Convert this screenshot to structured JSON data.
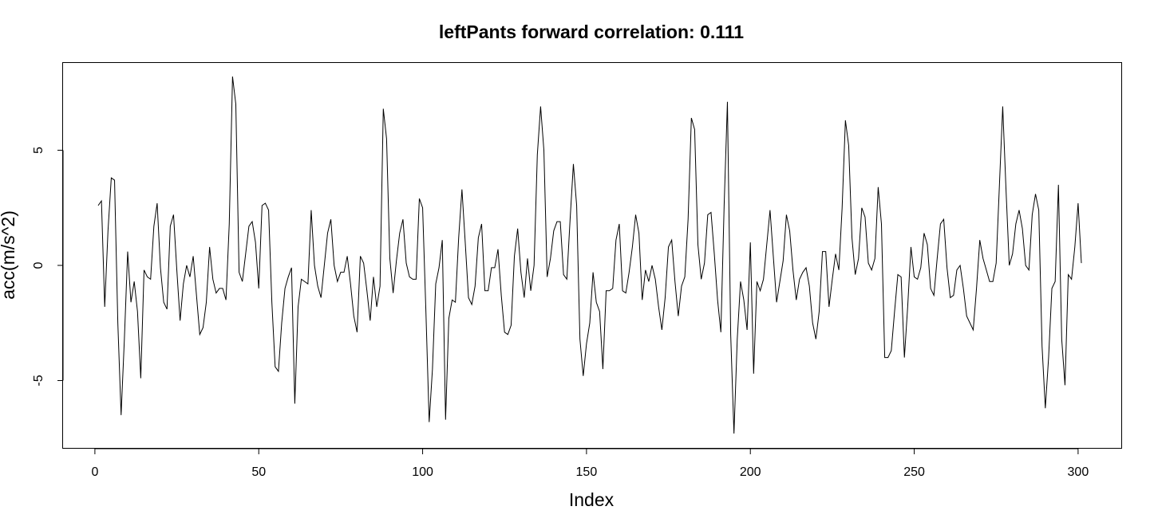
{
  "chart_data": {
    "type": "line",
    "title": "leftPants forward correlation: 0.111",
    "xlabel": "Index",
    "ylabel": "acc(m/s^2)",
    "xlim": [
      1,
      301
    ],
    "ylim": [
      -7.3,
      8.2
    ],
    "grid": false,
    "legend": "none",
    "x_ticks": [
      0,
      50,
      100,
      150,
      200,
      250,
      300
    ],
    "y_ticks": [
      -5,
      0,
      5
    ],
    "series": [
      {
        "x_start": 1,
        "values": [
          2.6,
          2.8,
          -1.8,
          1.5,
          3.8,
          3.7,
          -2.5,
          -6.5,
          -3.2,
          0.6,
          -1.6,
          -0.7,
          -2.0,
          -4.9,
          -0.2,
          -0.5,
          -0.6,
          1.7,
          2.7,
          -0.1,
          -1.6,
          -1.9,
          1.7,
          2.2,
          -0.2,
          -2.4,
          -0.8,
          0.0,
          -0.5,
          0.4,
          -1.3,
          -3.0,
          -2.7,
          -1.6,
          0.8,
          -0.6,
          -1.2,
          -1.0,
          -1.0,
          -1.5,
          1.8,
          8.2,
          7.0,
          -0.3,
          -0.7,
          0.5,
          1.7,
          1.9,
          1.0,
          -1.0,
          2.6,
          2.7,
          2.4,
          -1.6,
          -4.4,
          -4.6,
          -2.5,
          -1.0,
          -0.5,
          -0.1,
          -6.0,
          -1.8,
          -0.6,
          -0.7,
          -0.8,
          2.4,
          0.0,
          -0.9,
          -1.4,
          0.0,
          1.4,
          2.0,
          0.0,
          -0.7,
          -0.3,
          -0.3,
          0.4,
          -0.8,
          -2.2,
          -2.9,
          0.4,
          0.1,
          -1.1,
          -2.4,
          -0.5,
          -1.8,
          -0.9,
          6.8,
          5.5,
          0.3,
          -1.2,
          0.2,
          1.4,
          2.0,
          0.1,
          -0.5,
          -0.6,
          -0.6,
          2.9,
          2.5,
          -2.0,
          -6.8,
          -4.5,
          -0.8,
          -0.1,
          1.1,
          -6.7,
          -2.3,
          -1.5,
          -1.6,
          1.2,
          3.3,
          1.0,
          -1.4,
          -1.7,
          -0.9,
          1.2,
          1.8,
          -1.1,
          -1.1,
          -0.1,
          -0.1,
          0.7,
          -1.3,
          -2.9,
          -3.0,
          -2.6,
          0.4,
          1.6,
          -0.3,
          -1.4,
          0.3,
          -1.1,
          0.0,
          4.8,
          6.9,
          5.0,
          -0.5,
          0.3,
          1.5,
          1.9,
          1.9,
          -0.4,
          -0.6,
          2.0,
          4.4,
          2.6,
          -3.2,
          -4.8,
          -3.4,
          -2.5,
          -0.3,
          -1.6,
          -2.0,
          -4.5,
          -1.1,
          -1.1,
          -1.0,
          1.1,
          1.8,
          -1.1,
          -1.2,
          -0.3,
          0.8,
          2.2,
          1.4,
          -1.5,
          -0.2,
          -0.7,
          0.0,
          -0.6,
          -1.8,
          -2.8,
          -1.4,
          0.8,
          1.1,
          -0.7,
          -2.2,
          -0.9,
          -0.5,
          2.0,
          6.4,
          5.9,
          0.9,
          -0.6,
          0.1,
          2.2,
          2.3,
          0.5,
          -1.5,
          -2.9,
          2.6,
          7.1,
          -3.0,
          -7.3,
          -3.2,
          -0.7,
          -1.5,
          -2.8,
          1.0,
          -4.7,
          -0.7,
          -1.1,
          -0.6,
          0.9,
          2.4,
          0.4,
          -1.6,
          -0.7,
          0.2,
          2.2,
          1.5,
          -0.2,
          -1.5,
          -0.6,
          -0.3,
          -0.1,
          -0.9,
          -2.5,
          -3.2,
          -2.0,
          0.6,
          0.6,
          -1.8,
          -0.6,
          0.5,
          -0.2,
          2.5,
          6.3,
          5.2,
          1.2,
          -0.4,
          0.3,
          2.5,
          2.1,
          0.1,
          -0.2,
          0.3,
          3.4,
          1.8,
          -4.0,
          -4.0,
          -3.7,
          -2.0,
          -0.4,
          -0.5,
          -4.0,
          -1.8,
          0.8,
          -0.5,
          -0.6,
          -0.1,
          1.4,
          0.9,
          -1.0,
          -1.3,
          0.3,
          1.8,
          2.0,
          -0.1,
          -1.4,
          -1.3,
          -0.2,
          0.0,
          -1.0,
          -2.2,
          -2.5,
          -2.8,
          -1.0,
          1.1,
          0.3,
          -0.2,
          -0.7,
          -0.7,
          0.1,
          3.5,
          6.9,
          3.3,
          0.0,
          0.5,
          1.8,
          2.4,
          1.6,
          0.0,
          -0.2,
          2.2,
          3.1,
          2.4,
          -3.5,
          -6.2,
          -4.0,
          -1.0,
          -0.7,
          3.5,
          -3.2,
          -5.2,
          -0.4,
          -0.6,
          0.8,
          2.7,
          0.1
        ]
      }
    ]
  }
}
